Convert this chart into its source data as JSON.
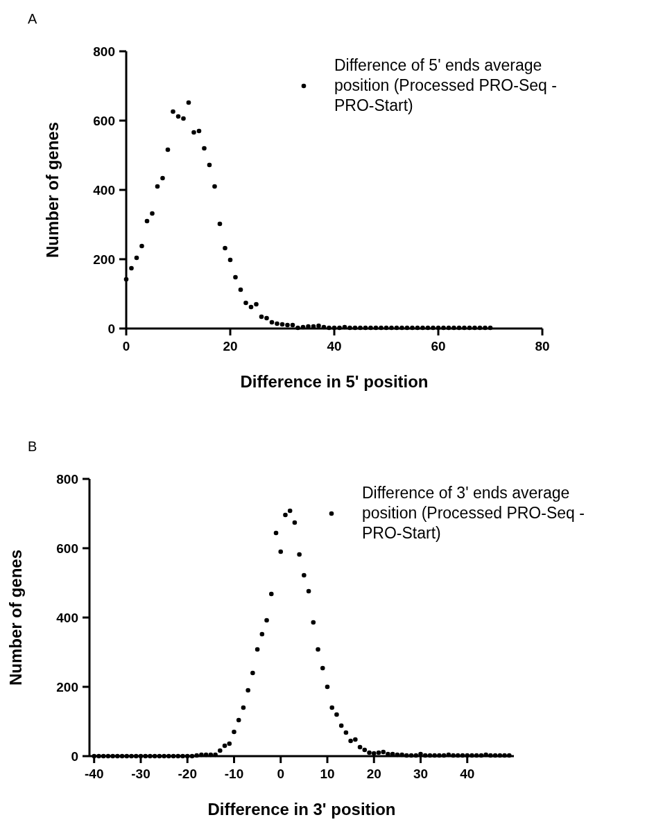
{
  "chart_data": [
    {
      "type": "scatter",
      "annotations": [
        "A"
      ],
      "xlabel": "Difference in 5' position",
      "ylabel": "Number of genes",
      "xlim": [
        0,
        80
      ],
      "ylim": [
        0,
        800
      ],
      "xticks": [
        0,
        20,
        40,
        60,
        80
      ],
      "yticks": [
        0,
        200,
        400,
        600,
        800
      ],
      "legend": "top right",
      "marker": "circle",
      "x": [
        0,
        1,
        2,
        3,
        4,
        5,
        6,
        7,
        8,
        9,
        10,
        11,
        12,
        13,
        14,
        15,
        16,
        17,
        18,
        19,
        20,
        21,
        22,
        23,
        24,
        25,
        26,
        27,
        28,
        29,
        30,
        31,
        32,
        33,
        34,
        35,
        36,
        37,
        38,
        39,
        40,
        41,
        42,
        43,
        44,
        45,
        46,
        47,
        48,
        49,
        50,
        51,
        52,
        53,
        54,
        55,
        56,
        57,
        58,
        59,
        60,
        61,
        62,
        63,
        64,
        65,
        66,
        67,
        68,
        69,
        70
      ],
      "series": [
        {
          "name": "Difference of 5' ends average position (Processed PRO-Seq - PRO-Start)",
          "color": "#000000",
          "values": [
            142,
            174,
            204,
            238,
            310,
            332,
            410,
            434,
            516,
            626,
            612,
            606,
            652,
            566,
            570,
            520,
            472,
            410,
            302,
            232,
            198,
            148,
            112,
            74,
            62,
            70,
            34,
            30,
            18,
            14,
            12,
            10,
            10,
            2,
            4,
            6,
            6,
            8,
            4,
            2,
            2,
            2,
            4,
            2,
            2,
            2,
            2,
            2,
            2,
            2,
            2,
            2,
            2,
            2,
            2,
            2,
            2,
            2,
            2,
            2,
            2,
            2,
            2,
            2,
            2,
            2,
            2,
            2,
            2,
            2,
            2
          ]
        }
      ]
    },
    {
      "type": "scatter",
      "annotations": [
        "B"
      ],
      "xlabel": "Difference in 3' position",
      "ylabel": "Number of genes",
      "xlim": [
        -41,
        50
      ],
      "ylim": [
        0,
        800
      ],
      "xticks": [
        -40,
        -30,
        -20,
        -10,
        0,
        10,
        20,
        30,
        40
      ],
      "yticks": [
        0,
        200,
        400,
        600,
        800
      ],
      "legend": "top right",
      "marker": "circle",
      "x": [
        -40,
        -39,
        -38,
        -37,
        -36,
        -35,
        -34,
        -33,
        -32,
        -31,
        -30,
        -29,
        -28,
        -27,
        -26,
        -25,
        -24,
        -23,
        -22,
        -21,
        -20,
        -19,
        -18,
        -17,
        -16,
        -15,
        -14,
        -13,
        -12,
        -11,
        -10,
        -9,
        -8,
        -7,
        -6,
        -5,
        -4,
        -3,
        -2,
        -1,
        0,
        1,
        2,
        3,
        4,
        5,
        6,
        7,
        8,
        9,
        10,
        11,
        12,
        13,
        14,
        15,
        16,
        17,
        18,
        19,
        20,
        21,
        22,
        23,
        24,
        25,
        26,
        27,
        28,
        29,
        30,
        31,
        32,
        33,
        34,
        35,
        36,
        37,
        38,
        39,
        40,
        41,
        42,
        43,
        44,
        45,
        46,
        47,
        48,
        49
      ],
      "series": [
        {
          "name": "Difference of 3' ends average position (Processed PRO-Seq - PRO-Start)",
          "color": "#000000",
          "values": [
            0,
            0,
            0,
            0,
            0,
            0,
            0,
            0,
            0,
            0,
            0,
            0,
            0,
            0,
            0,
            0,
            0,
            0,
            0,
            0,
            0,
            0,
            2,
            4,
            4,
            4,
            4,
            16,
            30,
            36,
            70,
            104,
            140,
            190,
            240,
            308,
            352,
            392,
            468,
            644,
            590,
            696,
            708,
            674,
            582,
            522,
            476,
            386,
            308,
            254,
            200,
            140,
            120,
            88,
            68,
            44,
            48,
            26,
            18,
            10,
            8,
            10,
            12,
            6,
            6,
            4,
            4,
            2,
            2,
            2,
            6,
            2,
            2,
            2,
            2,
            2,
            4,
            2,
            2,
            2,
            2,
            2,
            2,
            2,
            4,
            2,
            2,
            2,
            2,
            2
          ]
        }
      ]
    }
  ]
}
